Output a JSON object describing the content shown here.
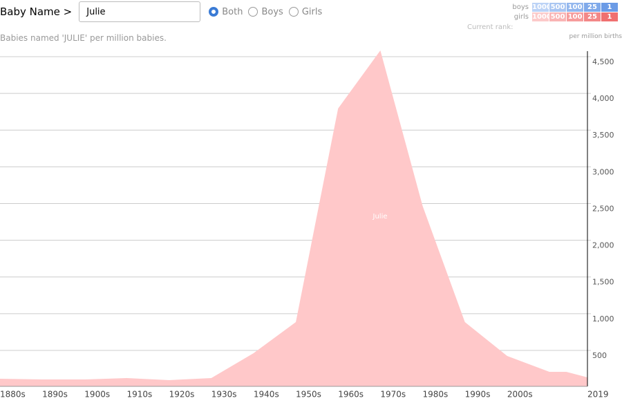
{
  "controls": {
    "label": "Baby Name >",
    "input": "Julie",
    "options": [
      "Both",
      "Boys",
      "Girls"
    ],
    "selected": 0
  },
  "rank_legend": {
    "caption": "Current rank:",
    "ranks": [
      1000,
      500,
      100,
      25,
      1
    ],
    "rows": [
      {
        "label": "boys",
        "colors": [
          "#bcd3f6",
          "#a9c6f2",
          "#93b7ee",
          "#7fa9ea",
          "#6b9be6"
        ]
      },
      {
        "label": "girls",
        "colors": [
          "#fccaca",
          "#f9b4b4",
          "#f69c9c",
          "#f38888",
          "#f07070"
        ]
      }
    ]
  },
  "chart_data": {
    "type": "area",
    "subtitle": "Babies named 'JULIE' per million babies.",
    "y_unit_label": "per million births",
    "x": [
      1880,
      1890,
      1900,
      1910,
      1920,
      1930,
      1940,
      1950,
      1960,
      1970,
      1980,
      1990,
      2000,
      2010,
      2014,
      2019
    ],
    "series": [
      {
        "name": "Julie",
        "color": "#ffc8c9",
        "values": [
          113,
          104,
          104,
          123,
          95,
          123,
          462,
          885,
          3794,
          4584,
          2466,
          885,
          424,
          208,
          208,
          132
        ]
      }
    ],
    "xlim": [
      1880,
      2019
    ],
    "ylim": [
      10,
      4650
    ],
    "xticks": [
      {
        "value": 1880,
        "label": "1880s"
      },
      {
        "value": 1890,
        "label": "1890s"
      },
      {
        "value": 1900,
        "label": "1900s"
      },
      {
        "value": 1910,
        "label": "1910s"
      },
      {
        "value": 1920,
        "label": "1920s"
      },
      {
        "value": 1930,
        "label": "1930s"
      },
      {
        "value": 1940,
        "label": "1940s"
      },
      {
        "value": 1950,
        "label": "1950s"
      },
      {
        "value": 1960,
        "label": "1960s"
      },
      {
        "value": 1970,
        "label": "1970s"
      },
      {
        "value": 1980,
        "label": "1980s"
      },
      {
        "value": 1990,
        "label": "1990s"
      },
      {
        "value": 2000,
        "label": "2000s"
      },
      2019
    ],
    "yticks": [
      500,
      {
        "value": 1000,
        "label": "1,000"
      },
      {
        "value": 1500,
        "label": "1,500"
      },
      {
        "value": 2000,
        "label": "2,000"
      },
      {
        "value": 2500,
        "label": "2,500"
      },
      {
        "value": 3000,
        "label": "3,000"
      },
      {
        "value": 3500,
        "label": "3,500"
      },
      {
        "value": 4000,
        "label": "4,000"
      },
      {
        "value": 4500,
        "label": "4,500"
      }
    ],
    "grid": true
  }
}
